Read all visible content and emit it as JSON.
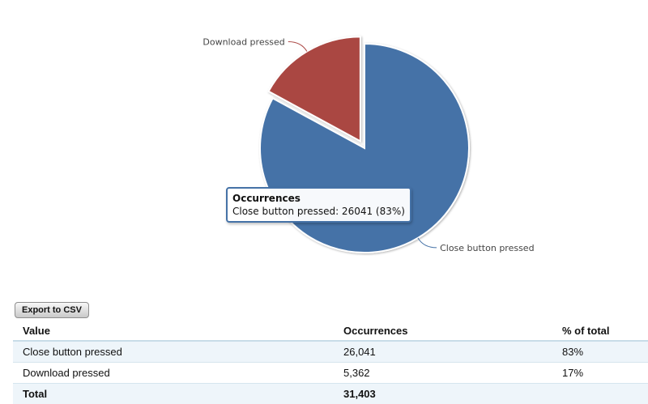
{
  "chart_data": {
    "type": "pie",
    "title": "",
    "slices": [
      {
        "label": "Close button pressed",
        "value": 26041,
        "percent": 83,
        "color": "#4572A7",
        "exploded": false
      },
      {
        "label": "Download pressed",
        "value": 5362,
        "percent": 17,
        "color": "#AA4643",
        "exploded": true
      }
    ]
  },
  "tooltip": {
    "title": "Occurrences",
    "text": "Close button pressed: 26041 (83%)"
  },
  "export_button": {
    "label": "Export to CSV"
  },
  "table": {
    "headers": [
      "Value",
      "Occurrences",
      "% of total"
    ],
    "rows": [
      [
        "Close button pressed",
        "26,041",
        "83%"
      ],
      [
        "Download pressed",
        "5,362",
        "17%"
      ]
    ],
    "total": [
      "Total",
      "31,403",
      ""
    ]
  }
}
